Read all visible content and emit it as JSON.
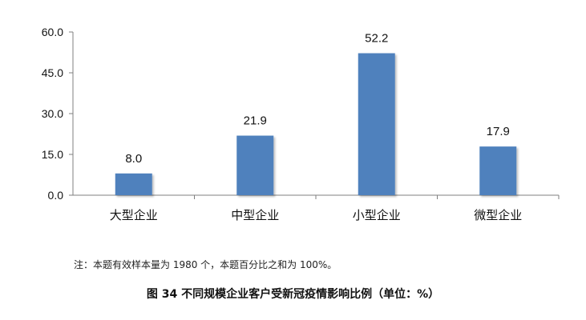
{
  "chart_data": {
    "type": "bar",
    "categories": [
      "大型企业",
      "中型企业",
      "小型企业",
      "微型企业"
    ],
    "values": [
      8.0,
      21.9,
      52.2,
      17.9
    ],
    "data_labels": [
      "8.0",
      "21.9",
      "52.2",
      "17.9"
    ],
    "y_ticks": [
      "0.0",
      "15.0",
      "30.0",
      "45.0",
      "60.0"
    ],
    "ylim": [
      0,
      60
    ],
    "title": "",
    "xlabel": "",
    "ylabel": "",
    "grid": false,
    "bar_color": "#4f81bd"
  },
  "note": "注：本题有效样本量为 1980 个，本题百分比之和为 100%。",
  "caption": "图 34 不同规模企业客户受新冠疫情影响比例（单位：%）"
}
